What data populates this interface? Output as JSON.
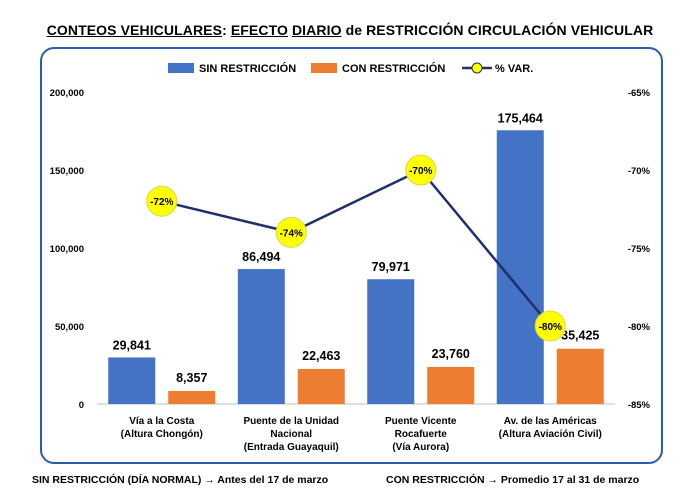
{
  "title": {
    "part1": "CONTEOS VEHICULARES",
    "sep": ": ",
    "part2": "EFECTO",
    "sp": " ",
    "part3": "DIARIO",
    "part4": " de RESTRICCIÓN CIRCULACIÓN VEHICULAR"
  },
  "chart_data": {
    "type": "bar",
    "categories": [
      [
        "Vía a la Costa",
        "(Altura Chongón)"
      ],
      [
        "Puente de la Unidad",
        "Nacional",
        "(Entrada Guayaquil)"
      ],
      [
        "Puente Vicente",
        "Rocafuerte",
        "(Vía Aurora)"
      ],
      [
        "Av. de las Américas",
        "(Altura Aviación Civil)"
      ]
    ],
    "series": [
      {
        "name": "SIN RESTRICCIÓN",
        "type": "bar",
        "axis": "left",
        "color": "#4472c4",
        "values": [
          29841,
          86494,
          79971,
          175464
        ],
        "labels": [
          "29,841",
          "86,494",
          "79,971",
          "175,464"
        ]
      },
      {
        "name": "CON RESTRICCIÓN",
        "type": "bar",
        "axis": "left",
        "color": "#ed7d31",
        "values": [
          8357,
          22463,
          23760,
          35425
        ],
        "labels": [
          "8,357",
          "22,463",
          "23,760",
          "35,425"
        ]
      },
      {
        "name": "% VAR.",
        "type": "line",
        "axis": "right",
        "color": "#1f2f6e",
        "marker_color": "#ffff00",
        "values": [
          -72,
          -74,
          -70,
          -80
        ],
        "labels": [
          "-72%",
          "-74%",
          "-70%",
          "-80%"
        ]
      }
    ],
    "y_left": {
      "min": 0,
      "max": 200000,
      "ticks": [
        0,
        50000,
        100000,
        150000,
        200000
      ],
      "tick_labels": [
        "0",
        "50,000",
        "100,000",
        "150,000",
        "200,000"
      ]
    },
    "y_right": {
      "min": -85,
      "max": -65,
      "ticks": [
        -85,
        -80,
        -75,
        -70,
        -65
      ],
      "tick_labels": [
        "-85%",
        "-80%",
        "-75%",
        "-70%",
        "-65%"
      ]
    },
    "legend_position": "top",
    "grid": false
  },
  "footer": {
    "left": "SIN RESTRICCIÓN (DÍA NORMAL) → Antes del 17 de marzo",
    "right": "CON RESTRICCIÓN → Promedio 17 al 31 de marzo"
  }
}
